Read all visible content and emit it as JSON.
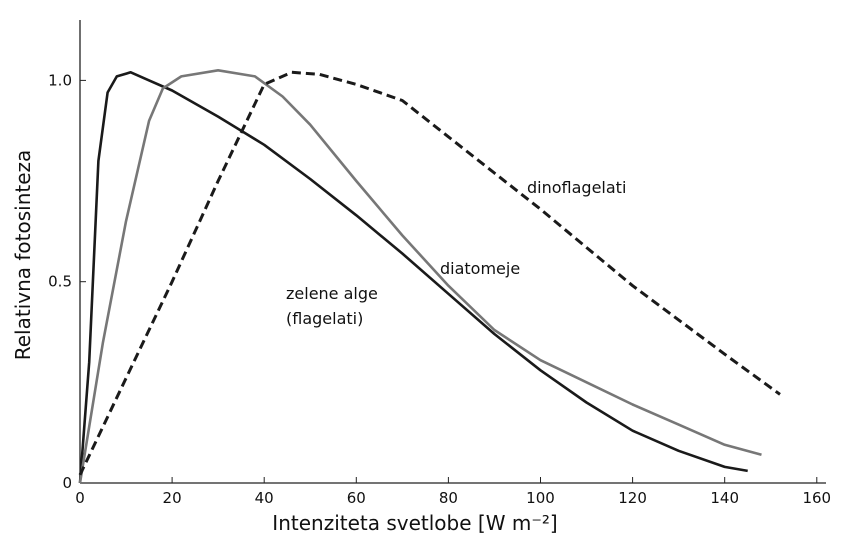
{
  "chart_data": {
    "type": "line",
    "xlabel": "Intenziteta svetlobe [W m⁻²]",
    "ylabel": "Relativna fotosinteza",
    "xlim": [
      0,
      162
    ],
    "ylim": [
      0,
      1.15
    ],
    "xticks": [
      0,
      20,
      40,
      60,
      80,
      100,
      120,
      140,
      160
    ],
    "yticks": [
      0,
      0.5,
      {
        "value": 1,
        "label": "1.0"
      }
    ],
    "grid": false,
    "annotations": [
      "dinoflagelati",
      "diatomeje",
      "zelene alge",
      "(flagelati)"
    ],
    "series": [
      {
        "color": "#1a1a1a",
        "style": "solid",
        "x": [
          0,
          2,
          4,
          6,
          8,
          11,
          15,
          20,
          30,
          40,
          50,
          60,
          70,
          80,
          90,
          100,
          110,
          120,
          130,
          140,
          145
        ],
        "values": [
          0,
          0.3,
          0.8,
          0.97,
          1.01,
          1.02,
          1.0,
          0.975,
          0.91,
          0.84,
          0.755,
          0.665,
          0.57,
          0.47,
          0.37,
          0.28,
          0.2,
          0.13,
          0.08,
          0.04,
          0.03
        ]
      },
      {
        "color": "#777777",
        "style": "solid",
        "x": [
          0,
          5,
          10,
          15,
          18,
          22,
          30,
          38,
          44,
          50,
          60,
          70,
          80,
          90,
          100,
          110,
          120,
          130,
          140,
          148
        ],
        "values": [
          0,
          0.35,
          0.65,
          0.9,
          0.98,
          1.01,
          1.025,
          1.01,
          0.96,
          0.89,
          0.75,
          0.615,
          0.49,
          0.38,
          0.305,
          0.25,
          0.195,
          0.145,
          0.095,
          0.07
        ]
      },
      {
        "color": "#1a1a1a",
        "style": "dashed",
        "x": [
          0,
          10,
          20,
          30,
          40,
          46,
          52,
          60,
          70,
          80,
          90,
          100,
          110,
          120,
          130,
          140,
          152
        ],
        "values": [
          0.02,
          0.26,
          0.5,
          0.75,
          0.99,
          1.02,
          1.015,
          0.99,
          0.95,
          0.86,
          0.77,
          0.68,
          0.585,
          0.49,
          0.405,
          0.32,
          0.22
        ]
      }
    ]
  }
}
